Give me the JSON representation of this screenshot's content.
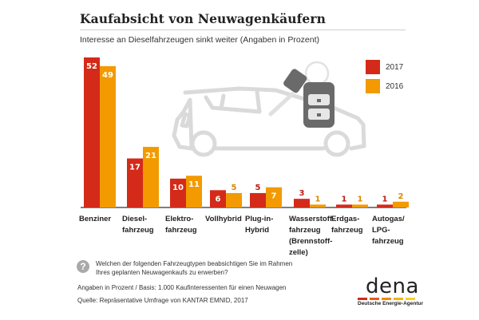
{
  "header": {
    "title": "Kaufabsicht von Neuwagenkäufern",
    "subtitle": "Interesse an Dieselfahrzeugen sinkt weiter (Angaben in Prozent)"
  },
  "chart_data": {
    "type": "bar",
    "title": "Kaufabsicht von Neuwagenkäufern",
    "subtitle": "Interesse an Dieselfahrzeugen sinkt weiter (Angaben in Prozent)",
    "xlabel": "",
    "ylabel": "",
    "ylim": [
      0,
      52
    ],
    "grid": false,
    "legend_position": "top-right",
    "categories": [
      "Benziner",
      "Diesel-\nfahrzeug",
      "Elektro-\nfahrzeug",
      "Vollhybrid",
      "Plug-in-\nHybrid",
      "Wasserstoff-\nfahrzeug\n(Brennstoff-\nzelle)",
      "Erdgas-\nfahrzeug",
      "Autogas/\nLPG-\nfahrzeug"
    ],
    "series": [
      {
        "name": "2017",
        "color": "#d42a1a",
        "values": [
          52,
          17,
          10,
          6,
          5,
          3,
          1,
          1
        ]
      },
      {
        "name": "2016",
        "color": "#f29a00",
        "values": [
          49,
          21,
          11,
          5,
          7,
          1,
          1,
          2
        ]
      }
    ]
  },
  "footer": {
    "question_icon": "question-icon",
    "question": "Welchen der folgenden Fahrzeugtypen beabsichtigen Sie im Rahmen Ihres geplanten Neuwagenkaufs zu erwerben?",
    "basis": "Angaben in Prozent / Basis: 1.000 Kaufinteressenten für einen Neuwagen",
    "source": "Quelle: Repräsentative Umfrage von KANTAR EMNID, 2017"
  },
  "logo": {
    "word": "dena",
    "subtitle": "Deutsche Energie-Agentur",
    "stripe_colors": [
      "#d42a1a",
      "#e35a1a",
      "#f08a00",
      "#f5b400",
      "#f7cf2a"
    ]
  },
  "illustration": {
    "icons": [
      "car-outline-icon",
      "car-key-icon"
    ]
  }
}
